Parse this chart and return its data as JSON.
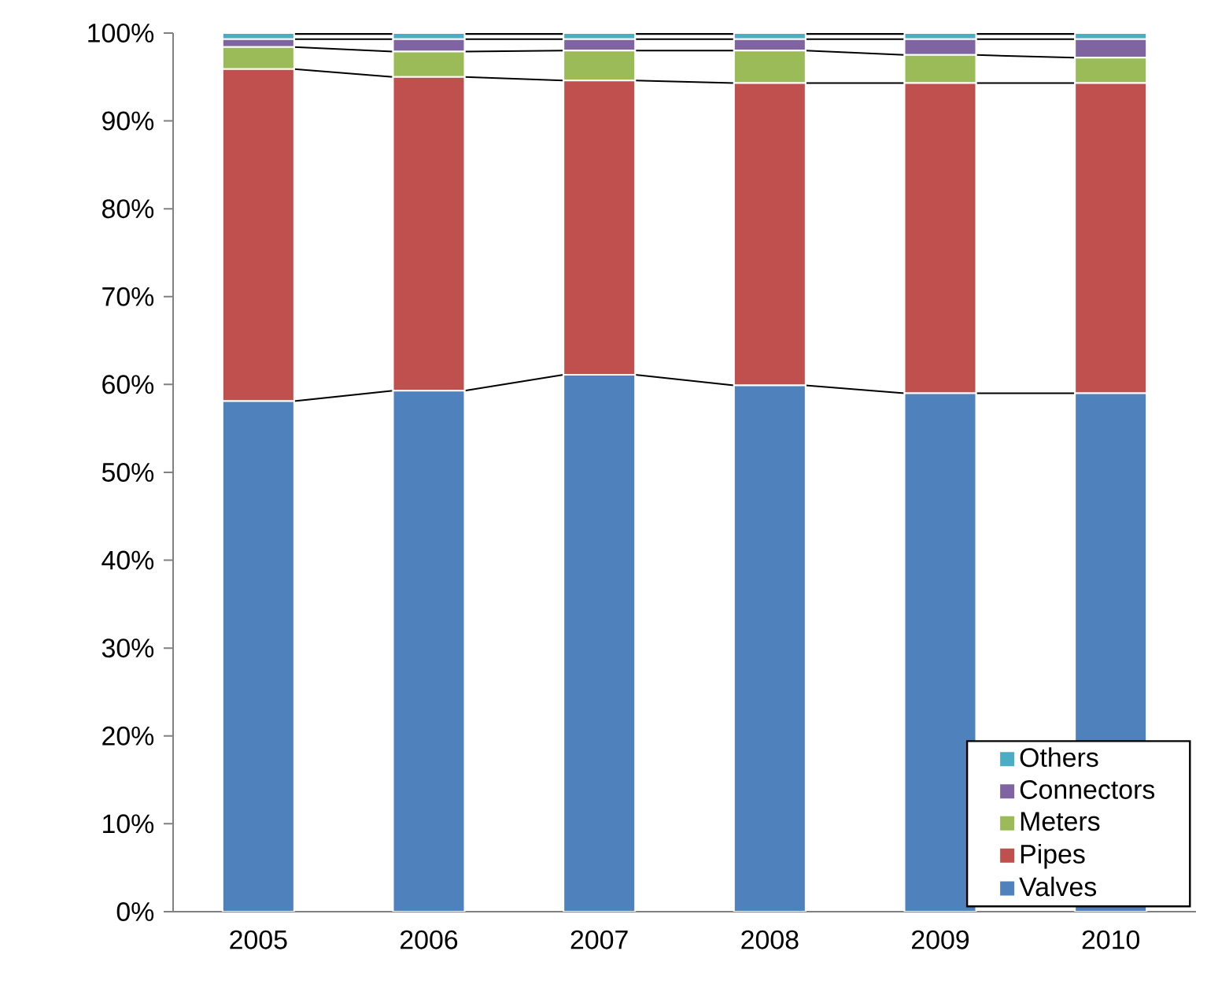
{
  "chart_data": {
    "type": "bar",
    "stacked": true,
    "categories": [
      "2005",
      "2006",
      "2007",
      "2008",
      "2009",
      "2010"
    ],
    "series": [
      {
        "name": "Valves",
        "color": "#4f81bd",
        "values": [
          58.1,
          59.3,
          61.1,
          59.9,
          59.0,
          59.0
        ]
      },
      {
        "name": "Pipes",
        "color": "#c0504d",
        "values": [
          37.8,
          35.7,
          33.5,
          34.4,
          35.3,
          35.3
        ]
      },
      {
        "name": "Meters",
        "color": "#9bbb59",
        "values": [
          2.5,
          2.9,
          3.4,
          3.7,
          3.2,
          2.9
        ]
      },
      {
        "name": "Connectors",
        "color": "#8064a2",
        "values": [
          0.9,
          1.4,
          1.3,
          1.3,
          1.8,
          2.1
        ]
      },
      {
        "name": "Others",
        "color": "#4bacc6",
        "values": [
          0.7,
          0.7,
          0.7,
          0.7,
          0.7,
          0.7
        ]
      }
    ],
    "ylim": [
      0,
      100
    ],
    "yticks": [
      {
        "value": 0,
        "label": "0%"
      },
      {
        "value": 10,
        "label": "10%"
      },
      {
        "value": 20,
        "label": "20%"
      },
      {
        "value": 30,
        "label": "30%"
      },
      {
        "value": 40,
        "label": "40%"
      },
      {
        "value": 50,
        "label": "50%"
      },
      {
        "value": 60,
        "label": "60%"
      },
      {
        "value": 70,
        "label": "70%"
      },
      {
        "value": 80,
        "label": "80%"
      },
      {
        "value": 90,
        "label": "90%"
      },
      {
        "value": 100,
        "label": "100%"
      }
    ],
    "grid": false,
    "legend": "bottom right"
  }
}
